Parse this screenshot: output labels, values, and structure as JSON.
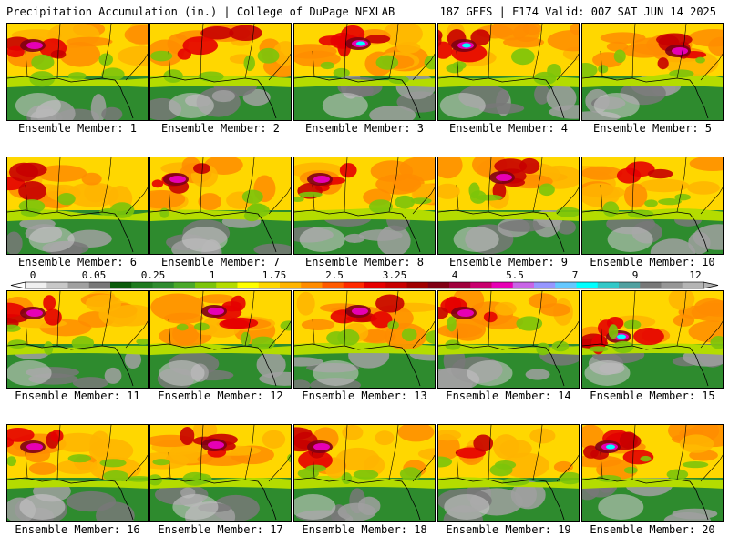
{
  "header": {
    "title": "Precipitation Accumulation (in.) | College of DuPage NEXLAB",
    "run_info": "18Z GEFS | F174 Valid: 00Z SAT JUN 14 2025"
  },
  "member_label": "Ensemble Member:",
  "members": [
    {
      "number": "1",
      "intensity": 0.55,
      "hot_spot": "top-left"
    },
    {
      "number": "2",
      "intensity": 0.5,
      "hot_spot": "top-center"
    },
    {
      "number": "3",
      "intensity": 0.7,
      "hot_spot": "top-center"
    },
    {
      "number": "4",
      "intensity": 0.75,
      "hot_spot": "top-left"
    },
    {
      "number": "5",
      "intensity": 0.6,
      "hot_spot": "top-right"
    },
    {
      "number": "6",
      "intensity": 0.5,
      "hot_spot": "top-left"
    },
    {
      "number": "7",
      "intensity": 0.55,
      "hot_spot": "top-left"
    },
    {
      "number": "8",
      "intensity": 0.6,
      "hot_spot": "top-left"
    },
    {
      "number": "9",
      "intensity": 0.6,
      "hot_spot": "top-center"
    },
    {
      "number": "10",
      "intensity": 0.4,
      "hot_spot": "top-center"
    },
    {
      "number": "11",
      "intensity": 0.65,
      "hot_spot": "top-left"
    },
    {
      "number": "12",
      "intensity": 0.65,
      "hot_spot": "top-center"
    },
    {
      "number": "13",
      "intensity": 0.65,
      "hot_spot": "top-center"
    },
    {
      "number": "14",
      "intensity": 0.55,
      "hot_spot": "top-left"
    },
    {
      "number": "15",
      "intensity": 0.75,
      "hot_spot": "center-left"
    },
    {
      "number": "16",
      "intensity": 0.55,
      "hot_spot": "top-left"
    },
    {
      "number": "17",
      "intensity": 0.65,
      "hot_spot": "top-center"
    },
    {
      "number": "18",
      "intensity": 0.65,
      "hot_spot": "top-left"
    },
    {
      "number": "19",
      "intensity": 0.3,
      "hot_spot": "top-center"
    },
    {
      "number": "20",
      "intensity": 0.7,
      "hot_spot": "top-left"
    }
  ],
  "colorbar": {
    "labels": [
      "0",
      "0.05",
      "0.25",
      "1",
      "1.75",
      "2.5",
      "3.25",
      "4",
      "5.5",
      "7",
      "9",
      "12"
    ],
    "colors": [
      "#f0f0f0",
      "#c8c8c8",
      "#a0a0a0",
      "#787878",
      "#0a5a0a",
      "#1f7a1f",
      "#2e8b2e",
      "#4aa82a",
      "#7cc40a",
      "#b4dc00",
      "#ffff00",
      "#ffd700",
      "#ffb400",
      "#ff8c00",
      "#ff5a00",
      "#ff2a00",
      "#e60000",
      "#c80000",
      "#a00000",
      "#800014",
      "#a0003c",
      "#c8006e",
      "#e600b4",
      "#c864e6",
      "#9696ff",
      "#64c8ff",
      "#00ffff",
      "#32c8c8",
      "#50a0a0",
      "#787878",
      "#969696",
      "#b4b4b4"
    ]
  }
}
